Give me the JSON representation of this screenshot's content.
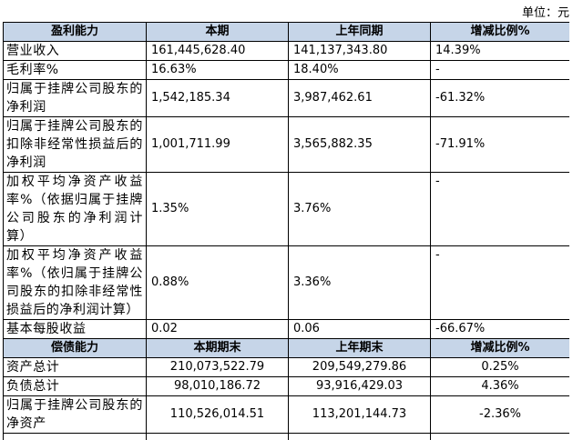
{
  "unit": "单位：元",
  "sections": [
    {
      "headers": [
        "盈利能力",
        "本期",
        "上年同期",
        "增减比例%"
      ],
      "rows": [
        [
          "营业收入",
          "161,445,628.40",
          "141,137,343.80",
          "14.39%"
        ],
        [
          "毛利率%",
          "16.63%",
          "18.40%",
          "-"
        ],
        [
          "归属于挂牌公司股东的净利润",
          "1,542,185.34",
          "3,987,462.61",
          "-61.32%"
        ],
        [
          "归属于挂牌公司股东的扣除非经常性损益后的净利润",
          "1,001,711.99",
          "3,565,882.35",
          "-71.91%"
        ],
        [
          "加权平均净资产收益率%（依据归属于挂牌公司股东的净利润计算）",
          "1.35%",
          "3.76%",
          "-"
        ],
        [
          "加权平均净资产收益率%（依归属于挂牌公司股东的扣除非经常性损益后的净利润计算）",
          "0.88%",
          "3.36%",
          "-"
        ],
        [
          "基本每股收益",
          "0.02",
          "0.06",
          "-66.67%"
        ]
      ]
    },
    {
      "headers": [
        "偿债能力",
        "本期期末",
        "上年期末",
        "增减比例%"
      ],
      "rows": [
        [
          "资产总计",
          "210,073,522.79",
          "209,549,279.86",
          "0.25%"
        ],
        [
          "负债总计",
          "98,010,186.72",
          "93,916,429.03",
          "4.36%"
        ],
        [
          "归属于挂牌公司股东的净资产",
          "110,526,014.51",
          "113,201,144.73",
          "-2.36%"
        ]
      ]
    }
  ]
}
